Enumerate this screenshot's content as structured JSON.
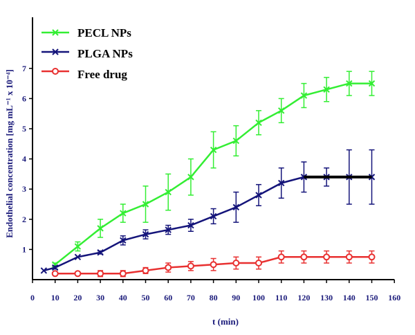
{
  "chart_data": {
    "type": "line",
    "title": "",
    "xlabel": "t (min)",
    "ylabel": "Endothelial concentration  [mg mL⁻¹ x 10⁻⁴]",
    "xlim": [
      0,
      160
    ],
    "ylim": [
      0,
      7.5
    ],
    "x_ticks": [
      0,
      10,
      20,
      30,
      40,
      50,
      60,
      70,
      80,
      90,
      100,
      110,
      120,
      130,
      140,
      150,
      160
    ],
    "y_ticks": [
      1,
      2,
      3,
      4,
      5,
      6,
      7
    ],
    "grid": false,
    "legend_position": "top-left",
    "series": [
      {
        "name": "PECL NPs",
        "color": "#33ee33",
        "marker": "x",
        "x": [
          10,
          20,
          30,
          40,
          50,
          60,
          70,
          80,
          90,
          100,
          110,
          120,
          130,
          140,
          150
        ],
        "y": [
          0.5,
          1.1,
          1.7,
          2.2,
          2.5,
          2.9,
          3.4,
          4.3,
          4.6,
          5.2,
          5.6,
          6.1,
          6.3,
          6.5,
          6.5
        ],
        "err": [
          0.05,
          0.15,
          0.3,
          0.3,
          0.6,
          0.6,
          0.6,
          0.6,
          0.5,
          0.4,
          0.4,
          0.4,
          0.4,
          0.4,
          0.4
        ]
      },
      {
        "name": "PLGA NPs",
        "color": "#14147a",
        "marker": "x",
        "x": [
          5,
          10,
          20,
          30,
          40,
          50,
          60,
          70,
          80,
          90,
          100,
          110,
          120,
          130,
          140,
          150
        ],
        "y": [
          0.3,
          0.4,
          0.75,
          0.9,
          1.3,
          1.5,
          1.65,
          1.8,
          2.1,
          2.4,
          2.8,
          3.2,
          3.4,
          3.4,
          3.4,
          3.4
        ],
        "err": [
          0,
          0.05,
          0,
          0.05,
          0.15,
          0.15,
          0.15,
          0.2,
          0.25,
          0.5,
          0.35,
          0.5,
          0.5,
          0.3,
          0.9,
          0.9
        ]
      },
      {
        "name": "Free drug",
        "color": "#e83030",
        "marker": "o",
        "x": [
          10,
          20,
          30,
          40,
          50,
          60,
          70,
          80,
          90,
          100,
          110,
          120,
          130,
          140,
          150
        ],
        "y": [
          0.2,
          0.2,
          0.2,
          0.2,
          0.3,
          0.4,
          0.45,
          0.5,
          0.55,
          0.55,
          0.75,
          0.75,
          0.75,
          0.75,
          0.75
        ],
        "err": [
          0.05,
          0.05,
          0.1,
          0.1,
          0.1,
          0.15,
          0.15,
          0.2,
          0.2,
          0.2,
          0.2,
          0.2,
          0.2,
          0.2,
          0.2
        ]
      }
    ],
    "annotations": [
      {
        "type": "segment",
        "color": "#000000",
        "x": [
          120,
          150
        ],
        "y": [
          3.4,
          3.4
        ]
      }
    ]
  }
}
